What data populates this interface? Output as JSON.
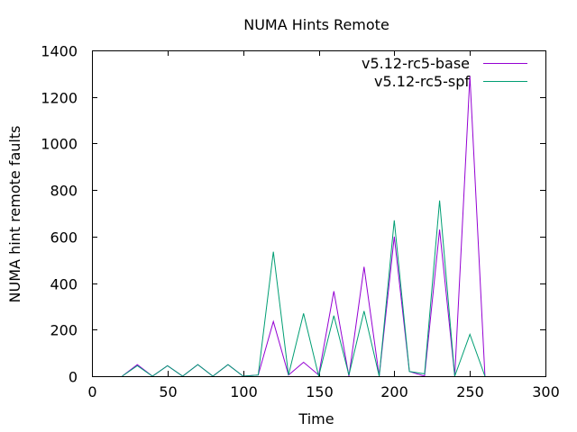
{
  "chart_data": {
    "type": "line",
    "title": "NUMA Hints Remote",
    "xlabel": "Time",
    "ylabel": "NUMA hint remote faults",
    "xlim": [
      0,
      300
    ],
    "ylim": [
      0,
      1400
    ],
    "xticks": [
      0,
      50,
      100,
      150,
      200,
      250,
      300
    ],
    "yticks": [
      0,
      200,
      400,
      600,
      800,
      1000,
      1200,
      1400
    ],
    "grid": false,
    "legend_position": "top-right",
    "series": [
      {
        "name": "v5.12-rc5-base",
        "color": "#9400d3",
        "x": [
          20,
          30,
          40,
          50,
          60,
          70,
          80,
          90,
          100,
          110,
          120,
          130,
          140,
          150,
          160,
          170,
          180,
          190,
          200,
          210,
          220,
          230,
          240,
          250,
          260
        ],
        "y": [
          0,
          50,
          0,
          45,
          0,
          50,
          0,
          50,
          0,
          5,
          235,
          5,
          60,
          5,
          365,
          0,
          470,
          0,
          600,
          20,
          0,
          630,
          0,
          1290,
          0
        ]
      },
      {
        "name": "v5.12-rc5-spf",
        "color": "#009e73",
        "x": [
          20,
          30,
          40,
          50,
          60,
          70,
          80,
          90,
          100,
          110,
          120,
          130,
          140,
          150,
          160,
          170,
          180,
          190,
          200,
          210,
          220,
          230,
          240,
          250,
          260
        ],
        "y": [
          0,
          45,
          0,
          45,
          0,
          50,
          0,
          50,
          0,
          5,
          535,
          5,
          270,
          0,
          260,
          5,
          280,
          0,
          670,
          20,
          10,
          755,
          0,
          180,
          0
        ]
      }
    ]
  }
}
